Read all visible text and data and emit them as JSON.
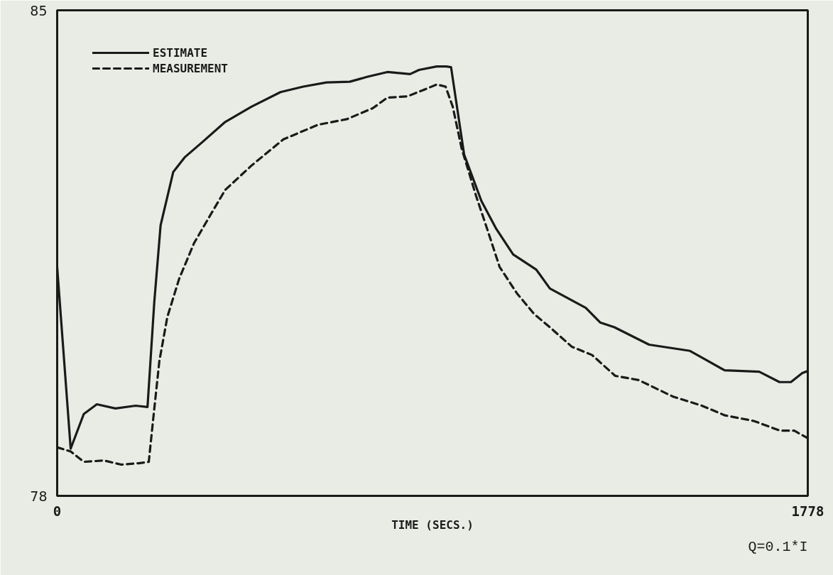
{
  "chart_data": {
    "type": "line",
    "xlabel": "TIME (SECS.)",
    "annotations": [
      "Q=0.1*I"
    ],
    "xlim": [
      0,
      1778
    ],
    "xticks": [
      0,
      1778
    ],
    "ylim": [
      78,
      85
    ],
    "yticks": [
      78,
      85
    ],
    "legend": "top left",
    "series": [
      {
        "name": "ESTIMATE",
        "color": "#1a1a1a",
        "line_style": "solid",
        "x": [
          0,
          32,
          63,
          94,
          138,
          186,
          214,
          230,
          245,
          275,
          302,
          344,
          398,
          460,
          529,
          583,
          638,
          693,
          734,
          782,
          836,
          857,
          899,
          922,
          933,
          964,
          1005,
          1039,
          1080,
          1135,
          1167,
          1252,
          1286,
          1320,
          1402,
          1499,
          1581,
          1663,
          1711,
          1738,
          1765,
          1778
        ],
        "values": [
          81.3,
          78.68,
          79.18,
          79.32,
          79.26,
          79.3,
          79.28,
          80.79,
          81.9,
          82.67,
          82.88,
          83.1,
          83.39,
          83.61,
          83.82,
          83.9,
          83.96,
          83.97,
          84.04,
          84.11,
          84.08,
          84.14,
          84.19,
          84.19,
          84.18,
          82.92,
          82.25,
          81.86,
          81.48,
          81.26,
          80.99,
          80.71,
          80.5,
          80.43,
          80.18,
          80.09,
          79.81,
          79.79,
          79.64,
          79.64,
          79.77,
          79.8
        ]
      },
      {
        "name": "MEASUREMENT",
        "color": "#1a1a1a",
        "line_style": "dashed",
        "x": [
          0,
          32,
          63,
          111,
          152,
          193,
          217,
          227,
          242,
          261,
          289,
          324,
          365,
          398,
          460,
          536,
          618,
          686,
          748,
          782,
          830,
          871,
          899,
          920,
          937,
          958,
          992,
          1020,
          1048,
          1089,
          1130,
          1171,
          1219,
          1267,
          1322,
          1377,
          1459,
          1527,
          1582,
          1650,
          1712,
          1746,
          1778
        ],
        "values": [
          78.7,
          78.64,
          78.49,
          78.51,
          78.45,
          78.47,
          78.49,
          79.08,
          79.94,
          80.58,
          81.13,
          81.64,
          82.07,
          82.41,
          82.76,
          83.14,
          83.35,
          83.43,
          83.59,
          83.74,
          83.76,
          83.86,
          83.93,
          83.9,
          83.61,
          83.01,
          82.33,
          81.82,
          81.3,
          80.92,
          80.62,
          80.41,
          80.15,
          80.03,
          79.73,
          79.67,
          79.43,
          79.3,
          79.16,
          79.08,
          78.94,
          78.94,
          78.83
        ]
      }
    ]
  }
}
